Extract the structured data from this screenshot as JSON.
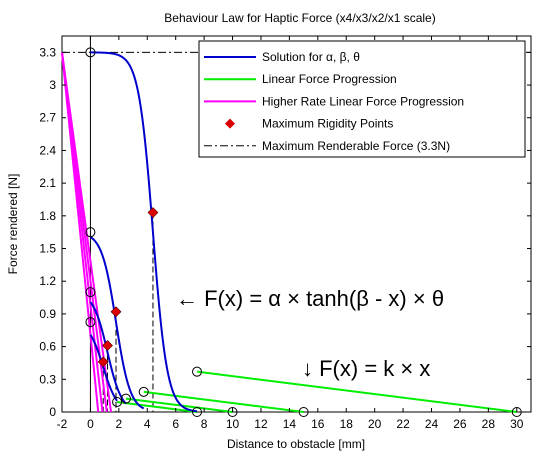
{
  "chart_data": {
    "type": "line",
    "title": "Behaviour Law for Haptic Force (x4/x3/x2/x1 scale)",
    "xlabel": "Distance to obstacle [mm]",
    "ylabel": "Force rendered [N]",
    "xlim": [
      -2,
      31
    ],
    "ylim": [
      0,
      3.45
    ],
    "xticks": [
      "-2",
      "0",
      "2",
      "4",
      "6",
      "8",
      "10",
      "12",
      "14",
      "16",
      "18",
      "20",
      "22",
      "24",
      "26",
      "28",
      "30"
    ],
    "yticks": [
      "0",
      "0.3",
      "0.6",
      "0.9",
      "1.2",
      "1.5",
      "1.8",
      "2.1",
      "2.4",
      "2.7",
      "3",
      "3.3"
    ],
    "grid": false,
    "legend_position": "top-right",
    "legend": [
      {
        "label": "Solution for α, β, θ",
        "color": "#0000cc",
        "style": "solid"
      },
      {
        "label": "Linear Force Progression",
        "color": "#00ee00",
        "style": "solid"
      },
      {
        "label": "Higher Rate Linear Force Progression",
        "color": "#ff00ff",
        "style": "solid"
      },
      {
        "label": "Maximum Rigidity Points",
        "color": "#dd0000",
        "style": "diamond"
      },
      {
        "label": "Maximum Renderable Force (3.3N)",
        "color": "#000000",
        "style": "dashdot"
      }
    ],
    "annotations": {
      "tanh_formula": "← F(x) = α × tanh(β - x) × θ",
      "linear_formula": "↓ F(x) = k × x"
    },
    "series": [
      {
        "name": "Solution for α, β, θ",
        "tanh_curves": [
          {
            "alpha": 1.65,
            "beta": 4.4,
            "theta": 2.0,
            "x_start": 0,
            "x_end": 7.5
          },
          {
            "alpha": 0.825,
            "beta": 1.8,
            "theta": 2.0,
            "x_start": 0,
            "x_end": 3.75
          },
          {
            "alpha": 0.55,
            "beta": 1.2,
            "theta": 2.0,
            "x_start": 0,
            "x_end": 2.5
          },
          {
            "alpha": 0.4125,
            "beta": 0.9,
            "theta": 2.0,
            "x_start": 0,
            "x_end": 1.875
          }
        ]
      },
      {
        "name": "Linear Force Progression",
        "segments": [
          {
            "x": [
              7.5,
              30
            ],
            "y": [
              0.37,
              0
            ]
          },
          {
            "x": [
              3.75,
              15
            ],
            "y": [
              0.185,
              0
            ]
          },
          {
            "x": [
              2.5,
              10
            ],
            "y": [
              0.123,
              0
            ]
          },
          {
            "x": [
              1.875,
              7.5
            ],
            "y": [
              0.092,
              0
            ]
          }
        ]
      },
      {
        "name": "Higher Rate Linear Force Progression",
        "segments": [
          {
            "x": [
              -2,
              0.55
            ],
            "y": [
              3.3,
              0
            ]
          },
          {
            "x": [
              -2,
              0.85
            ],
            "y": [
              3.3,
              0
            ]
          },
          {
            "x": [
              -2,
              1.15
            ],
            "y": [
              3.3,
              0
            ]
          },
          {
            "x": [
              -2,
              1.45
            ],
            "y": [
              3.3,
              0
            ]
          }
        ]
      },
      {
        "name": "Maximum Rigidity Points",
        "points": [
          {
            "x": 4.4,
            "y": 1.83
          },
          {
            "x": 1.8,
            "y": 0.92
          },
          {
            "x": 1.2,
            "y": 0.61
          },
          {
            "x": 0.9,
            "y": 0.46
          }
        ]
      },
      {
        "name": "Maximum Renderable Force (3.3N)",
        "y": 3.3
      }
    ],
    "circle_markers": [
      {
        "x": 0,
        "y": 3.3
      },
      {
        "x": 0,
        "y": 1.65
      },
      {
        "x": 0,
        "y": 1.1
      },
      {
        "x": 0,
        "y": 0.825
      },
      {
        "x": 7.5,
        "y": 0.37
      },
      {
        "x": 3.75,
        "y": 0.185
      },
      {
        "x": 2.5,
        "y": 0.123
      },
      {
        "x": 1.875,
        "y": 0.092
      },
      {
        "x": 7.5,
        "y": 0
      },
      {
        "x": 10,
        "y": 0
      },
      {
        "x": 15,
        "y": 0
      },
      {
        "x": 30,
        "y": 0
      }
    ],
    "dashed_drop_lines_x": [
      0,
      0.9,
      1.2,
      1.8,
      4.4
    ]
  }
}
